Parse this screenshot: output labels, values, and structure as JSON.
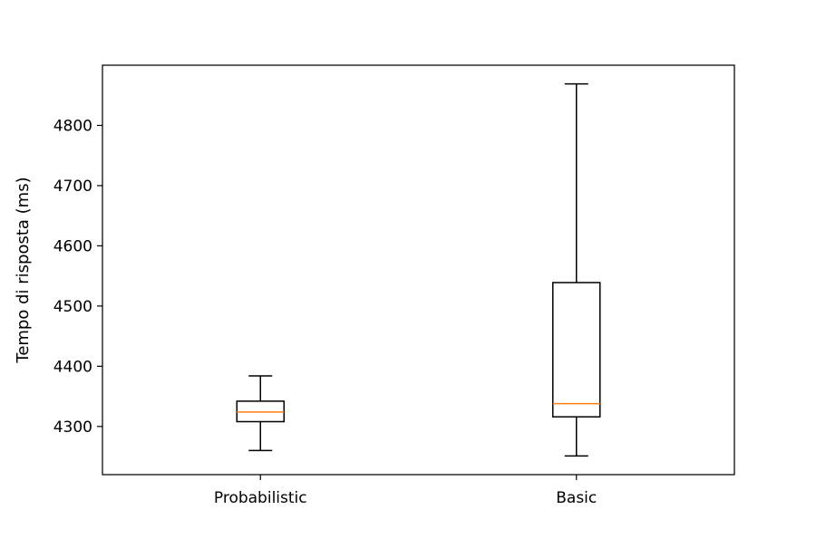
{
  "chart_data": {
    "type": "box",
    "title": "",
    "xlabel": "",
    "ylabel": "Tempo di risposta (ms)",
    "ylim": [
      4220,
      4900
    ],
    "yticks": [
      4300,
      4400,
      4500,
      4600,
      4700,
      4800
    ],
    "grid": false,
    "categories": [
      "Probabilistic",
      "Basic"
    ],
    "boxes": [
      {
        "category": "Probabilistic",
        "whisker_low": 4260,
        "q1": 4308,
        "median": 4324,
        "q3": 4342,
        "whisker_high": 4384
      },
      {
        "category": "Basic",
        "whisker_low": 4251,
        "q1": 4316,
        "median": 4338,
        "q3": 4539,
        "whisker_high": 4869
      }
    ],
    "colors": {
      "box": "#000000",
      "median": "#ff7f0e",
      "axes": "#000000"
    }
  }
}
